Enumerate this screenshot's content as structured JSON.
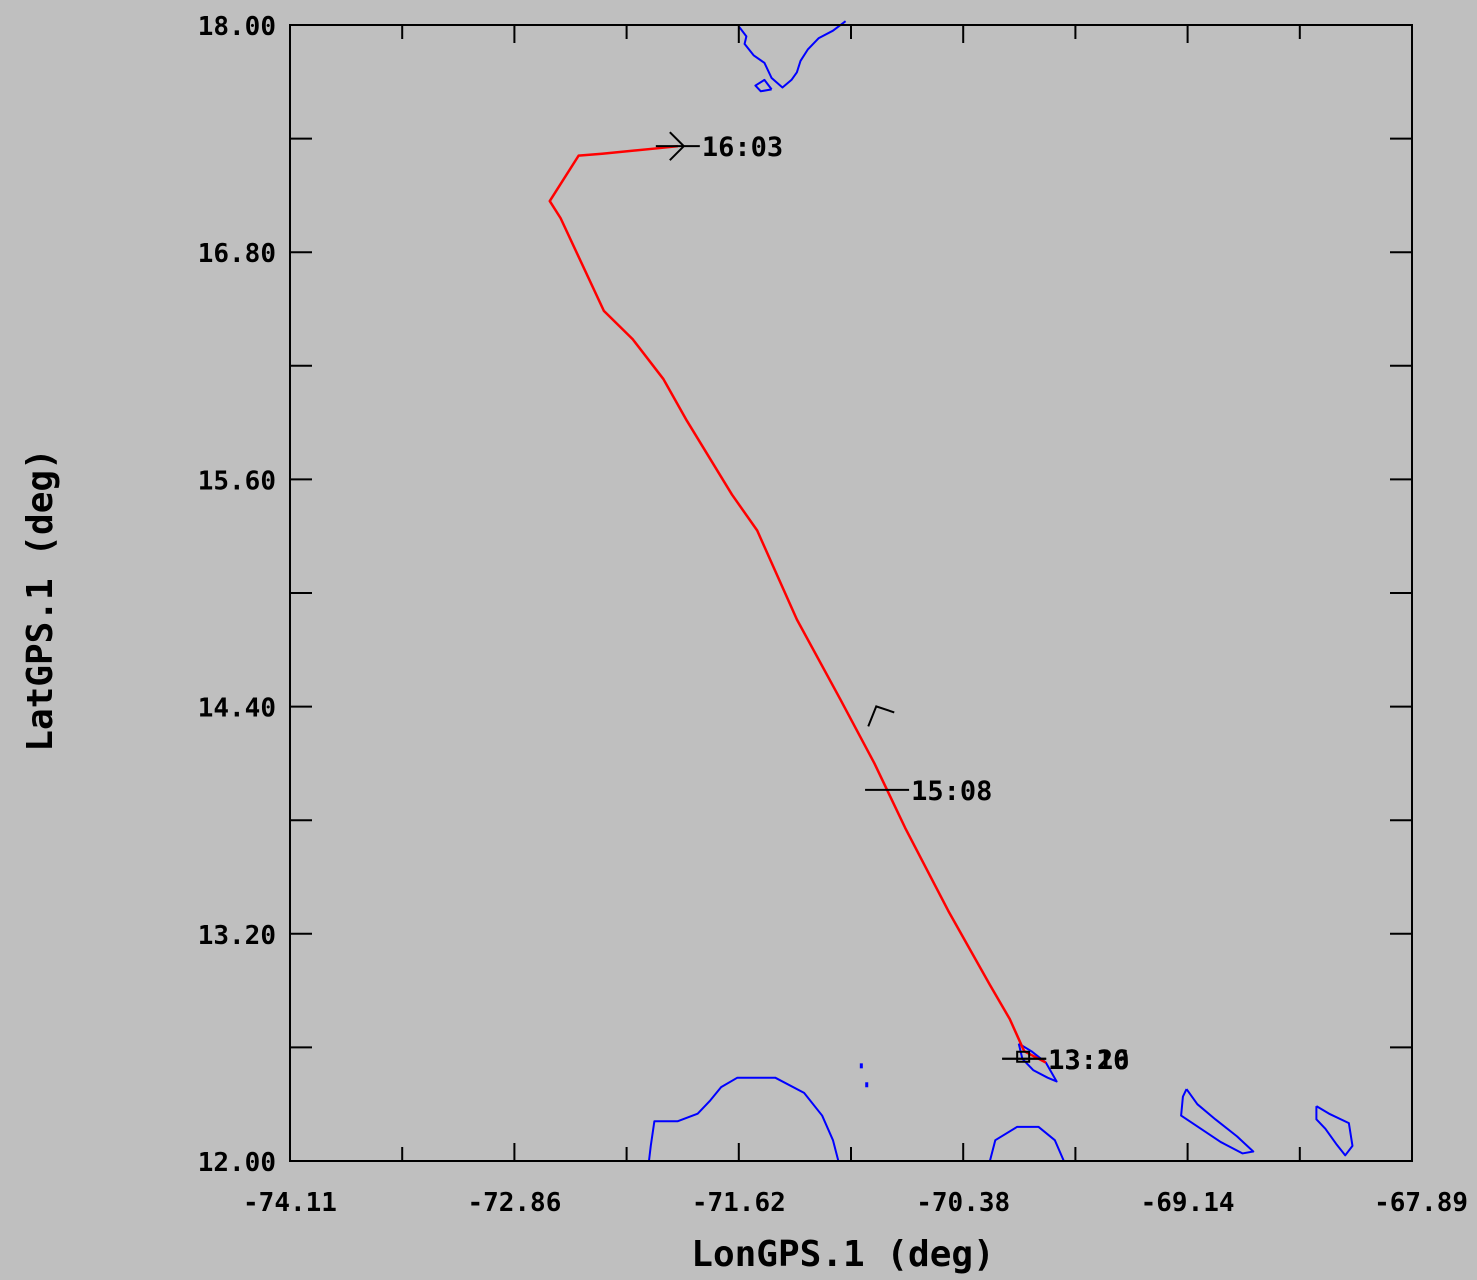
{
  "chart_data": {
    "type": "line",
    "xlabel": "LonGPS.1 (deg)",
    "ylabel": "LatGPS.1 (deg)",
    "xlim": [
      -74.11,
      -67.89
    ],
    "ylim": [
      12.0,
      18.0
    ],
    "x_ticks": [
      "-74.11",
      "-72.86",
      "-71.62",
      "-70.38",
      "-69.14",
      "-67.89"
    ],
    "y_ticks": [
      "12.00",
      "13.20",
      "14.40",
      "15.60",
      "16.80",
      "18.00"
    ],
    "grid": false,
    "colors": {
      "track": "#ff0000",
      "coastline": "#0000ff",
      "markers": "#000000",
      "background": "#bfbfbf"
    },
    "series": [
      {
        "values": [
          [
            -69.92,
            12.52
          ],
          [
            -70.04,
            12.58
          ],
          [
            -70.12,
            12.75
          ],
          [
            -70.23,
            12.93
          ],
          [
            -70.46,
            13.32
          ],
          [
            -70.7,
            13.76
          ],
          [
            -70.87,
            14.1
          ],
          [
            -71.06,
            14.44
          ],
          [
            -71.3,
            14.86
          ],
          [
            -71.52,
            15.33
          ],
          [
            -71.66,
            15.52
          ],
          [
            -71.91,
            15.91
          ],
          [
            -72.04,
            16.13
          ],
          [
            -72.21,
            16.34
          ],
          [
            -72.37,
            16.49
          ],
          [
            -72.61,
            16.98
          ],
          [
            -72.67,
            17.07
          ],
          [
            -72.51,
            17.31
          ],
          [
            -72.38,
            17.32
          ],
          [
            -72.06,
            17.35
          ],
          [
            -71.96,
            17.36
          ]
        ]
      }
    ],
    "time_labels": [
      {
        "text": "16:03",
        "lon": -71.96,
        "lat": 17.36
      },
      {
        "text": "15:08",
        "lon": -70.8,
        "lat": 13.96
      },
      {
        "text": "13:20",
        "lon": -70.04,
        "lat": 12.54
      },
      {
        "text": "13:16",
        "lon": -70.04,
        "lat": 12.54
      }
    ],
    "coastlines": [
      [
        [
          -71.03,
          18.02
        ],
        [
          -71.1,
          17.97
        ],
        [
          -71.18,
          17.93
        ],
        [
          -71.24,
          17.87
        ],
        [
          -71.28,
          17.81
        ],
        [
          -71.3,
          17.75
        ],
        [
          -71.33,
          17.71
        ],
        [
          -71.38,
          17.67
        ],
        [
          -71.44,
          17.72
        ],
        [
          -71.48,
          17.8
        ],
        [
          -71.54,
          17.84
        ],
        [
          -71.59,
          17.9
        ],
        [
          -71.58,
          17.94
        ],
        [
          -71.62,
          17.99
        ]
      ],
      [
        [
          -71.44,
          17.66
        ],
        [
          -71.5,
          17.65
        ],
        [
          -71.53,
          17.68
        ],
        [
          -71.48,
          17.71
        ],
        [
          -71.44,
          17.66
        ]
      ],
      [
        [
          -72.12,
          12.0
        ],
        [
          -72.11,
          12.08
        ],
        [
          -72.09,
          12.21
        ],
        [
          -71.96,
          12.21
        ],
        [
          -71.85,
          12.25
        ],
        [
          -71.78,
          12.32
        ],
        [
          -71.72,
          12.39
        ],
        [
          -71.63,
          12.44
        ],
        [
          -71.42,
          12.44
        ],
        [
          -71.26,
          12.36
        ],
        [
          -71.16,
          12.24
        ],
        [
          -71.1,
          12.11
        ],
        [
          -71.07,
          12.0
        ]
      ],
      [
        [
          -70.23,
          12.0
        ],
        [
          -70.2,
          12.11
        ],
        [
          -70.08,
          12.18
        ],
        [
          -69.96,
          12.18
        ],
        [
          -69.87,
          12.11
        ],
        [
          -69.82,
          12.0
        ]
      ],
      [
        [
          -70.07,
          12.62
        ],
        [
          -70.0,
          12.58
        ],
        [
          -69.92,
          12.52
        ],
        [
          -69.86,
          12.42
        ],
        [
          -69.91,
          12.44
        ],
        [
          -69.99,
          12.48
        ],
        [
          -70.05,
          12.54
        ],
        [
          -70.07,
          12.62
        ]
      ],
      [
        [
          -69.14,
          12.38
        ],
        [
          -69.08,
          12.3
        ],
        [
          -68.98,
          12.22
        ],
        [
          -68.86,
          12.13
        ],
        [
          -68.77,
          12.05
        ],
        [
          -68.83,
          12.04
        ],
        [
          -68.95,
          12.1
        ],
        [
          -69.06,
          12.17
        ],
        [
          -69.17,
          12.24
        ],
        [
          -69.16,
          12.34
        ],
        [
          -69.14,
          12.38
        ]
      ],
      [
        [
          -68.42,
          12.29
        ],
        [
          -68.35,
          12.25
        ],
        [
          -68.24,
          12.2
        ],
        [
          -68.22,
          12.08
        ],
        [
          -68.26,
          12.03
        ],
        [
          -68.31,
          12.09
        ],
        [
          -68.37,
          12.17
        ],
        [
          -68.42,
          12.22
        ],
        [
          -68.42,
          12.29
        ]
      ]
    ]
  }
}
